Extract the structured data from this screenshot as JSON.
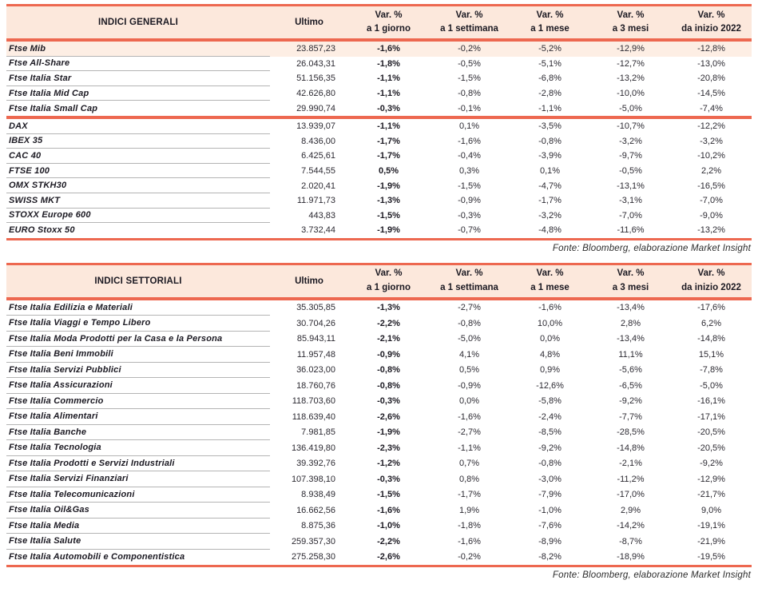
{
  "source_note": "Fonte: Bloomberg, elaborazione Market Insight",
  "columns": {
    "ultimo": "Ultimo",
    "var_headers": [
      [
        "Var. %",
        "a 1 giorno"
      ],
      [
        "Var. %",
        "a 1 settimana"
      ],
      [
        "Var. %",
        "a 1 mese"
      ],
      [
        "Var. %",
        "a 3 mesi"
      ],
      [
        "Var. %",
        "da inizio 2022"
      ]
    ]
  },
  "colors": {
    "accent": "#ed6850",
    "header_bg": "#fce8dc",
    "highlight_bg": "#fdeee4"
  },
  "tables": [
    {
      "title": "INDICI GENERALI",
      "rows": [
        {
          "name": "Ftse Mib",
          "ultimo": "23.857,23",
          "vars": [
            "-1,6%",
            "-0,2%",
            "-5,2%",
            "-12,9%",
            "-12,8%"
          ],
          "highlight": true
        },
        {
          "name": "Ftse All-Share",
          "ultimo": "26.043,31",
          "vars": [
            "-1,8%",
            "-0,5%",
            "-5,1%",
            "-12,7%",
            "-13,0%"
          ]
        },
        {
          "name": "Ftse Italia Star",
          "ultimo": "51.156,35",
          "vars": [
            "-1,1%",
            "-1,5%",
            "-6,8%",
            "-13,2%",
            "-20,8%"
          ]
        },
        {
          "name": "Ftse Italia Mid Cap",
          "ultimo": "42.626,80",
          "vars": [
            "-1,1%",
            "-0,8%",
            "-2,8%",
            "-10,0%",
            "-14,5%"
          ]
        },
        {
          "name": "Ftse Italia Small Cap",
          "ultimo": "29.990,74",
          "vars": [
            "-0,3%",
            "-0,1%",
            "-1,1%",
            "-5,0%",
            "-7,4%"
          ],
          "group_end": true
        },
        {
          "name": "DAX",
          "ultimo": "13.939,07",
          "vars": [
            "-1,1%",
            "0,1%",
            "-3,5%",
            "-10,7%",
            "-12,2%"
          ]
        },
        {
          "name": "IBEX 35",
          "ultimo": "8.436,00",
          "vars": [
            "-1,7%",
            "-1,6%",
            "-0,8%",
            "-3,2%",
            "-3,2%"
          ]
        },
        {
          "name": "CAC 40",
          "ultimo": "6.425,61",
          "vars": [
            "-1,7%",
            "-0,4%",
            "-3,9%",
            "-9,7%",
            "-10,2%"
          ]
        },
        {
          "name": "FTSE 100",
          "ultimo": "7.544,55",
          "vars": [
            "0,5%",
            "0,3%",
            "0,1%",
            "-0,5%",
            "2,2%"
          ]
        },
        {
          "name": "OMX STKH30",
          "ultimo": "2.020,41",
          "vars": [
            "-1,9%",
            "-1,5%",
            "-4,7%",
            "-13,1%",
            "-16,5%"
          ]
        },
        {
          "name": "SWISS MKT",
          "ultimo": "11.971,73",
          "vars": [
            "-1,3%",
            "-0,9%",
            "-1,7%",
            "-3,1%",
            "-7,0%"
          ]
        },
        {
          "name": "STOXX Europe 600",
          "ultimo": "443,83",
          "vars": [
            "-1,5%",
            "-0,3%",
            "-3,2%",
            "-7,0%",
            "-9,0%"
          ]
        },
        {
          "name": "EURO Stoxx 50",
          "ultimo": "3.732,44",
          "vars": [
            "-1,9%",
            "-0,7%",
            "-4,8%",
            "-11,6%",
            "-13,2%"
          ]
        }
      ]
    },
    {
      "title": "INDICI SETTORIALI",
      "rows": [
        {
          "name": "Ftse Italia Edilizia e Materiali",
          "ultimo": "35.305,85",
          "vars": [
            "-1,3%",
            "-2,7%",
            "-1,6%",
            "-13,4%",
            "-17,6%"
          ]
        },
        {
          "name": "Ftse Italia Viaggi e Tempo Libero",
          "ultimo": "30.704,26",
          "vars": [
            "-2,2%",
            "-0,8%",
            "10,0%",
            "2,8%",
            "6,2%"
          ]
        },
        {
          "name": "Ftse Italia Moda Prodotti per la Casa e la Persona",
          "ultimo": "85.943,11",
          "vars": [
            "-2,1%",
            "-5,0%",
            "0,0%",
            "-13,4%",
            "-14,8%"
          ]
        },
        {
          "name": "Ftse Italia Beni Immobili",
          "ultimo": "11.957,48",
          "vars": [
            "-0,9%",
            "4,1%",
            "4,8%",
            "11,1%",
            "15,1%"
          ]
        },
        {
          "name": "Ftse Italia Servizi Pubblici",
          "ultimo": "36.023,00",
          "vars": [
            "-0,8%",
            "0,5%",
            "0,9%",
            "-5,6%",
            "-7,8%"
          ]
        },
        {
          "name": "Ftse Italia Assicurazioni",
          "ultimo": "18.760,76",
          "vars": [
            "-0,8%",
            "-0,9%",
            "-12,6%",
            "-6,5%",
            "-5,0%"
          ]
        },
        {
          "name": "Ftse Italia Commercio",
          "ultimo": "118.703,60",
          "vars": [
            "-0,3%",
            "0,0%",
            "-5,8%",
            "-9,2%",
            "-16,1%"
          ]
        },
        {
          "name": "Ftse Italia Alimentari",
          "ultimo": "118.639,40",
          "vars": [
            "-2,6%",
            "-1,6%",
            "-2,4%",
            "-7,7%",
            "-17,1%"
          ]
        },
        {
          "name": "Ftse Italia Banche",
          "ultimo": "7.981,85",
          "vars": [
            "-1,9%",
            "-2,7%",
            "-8,5%",
            "-28,5%",
            "-20,5%"
          ]
        },
        {
          "name": "Ftse Italia Tecnologia",
          "ultimo": "136.419,80",
          "vars": [
            "-2,3%",
            "-1,1%",
            "-9,2%",
            "-14,8%",
            "-20,5%"
          ]
        },
        {
          "name": "Ftse Italia Prodotti e Servizi Industriali",
          "ultimo": "39.392,76",
          "vars": [
            "-1,2%",
            "0,7%",
            "-0,8%",
            "-2,1%",
            "-9,2%"
          ]
        },
        {
          "name": "Ftse Italia Servizi Finanziari",
          "ultimo": "107.398,10",
          "vars": [
            "-0,3%",
            "0,8%",
            "-3,0%",
            "-11,2%",
            "-12,9%"
          ]
        },
        {
          "name": "Ftse Italia Telecomunicazioni",
          "ultimo": "8.938,49",
          "vars": [
            "-1,5%",
            "-1,7%",
            "-7,9%",
            "-17,0%",
            "-21,7%"
          ]
        },
        {
          "name": "Ftse Italia Oil&Gas",
          "ultimo": "16.662,56",
          "vars": [
            "-1,6%",
            "1,9%",
            "-1,0%",
            "2,9%",
            "9,0%"
          ]
        },
        {
          "name": "Ftse Italia Media",
          "ultimo": "8.875,36",
          "vars": [
            "-1,0%",
            "-1,8%",
            "-7,6%",
            "-14,2%",
            "-19,1%"
          ]
        },
        {
          "name": "Ftse Italia Salute",
          "ultimo": "259.357,30",
          "vars": [
            "-2,2%",
            "-1,6%",
            "-8,9%",
            "-8,7%",
            "-21,9%"
          ]
        },
        {
          "name": "Ftse Italia Automobili e Componentistica",
          "ultimo": "275.258,30",
          "vars": [
            "-2,6%",
            "-0,2%",
            "-8,2%",
            "-18,9%",
            "-19,5%"
          ]
        }
      ]
    }
  ]
}
